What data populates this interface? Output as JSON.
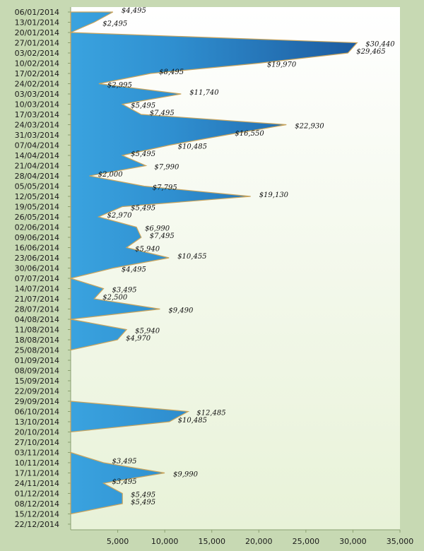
{
  "chart_data": {
    "type": "area",
    "orientation": "horizontal",
    "title": "",
    "xlabel": "",
    "ylabel": "",
    "xlim": [
      0,
      35000
    ],
    "x_ticks": [
      5000,
      10000,
      15000,
      20000,
      25000,
      30000,
      35000
    ],
    "x_tick_labels": [
      "5,000",
      "10,000",
      "15,000",
      "20,000",
      "25,000",
      "30,000",
      "35,000"
    ],
    "grid": false,
    "legend": "none",
    "colors": {
      "area_light": "#3aa3df",
      "area_dark": "#1c5a9e",
      "outline": "#c9a45c",
      "plot_bg_top": "#ffffff",
      "plot_bg_bottom": "#e8f2d8",
      "page_bg": "#c7d9b3",
      "axis": "#8aa070"
    },
    "categories": [
      "06/01/2014",
      "13/01/2014",
      "20/01/2014",
      "27/01/2014",
      "03/02/2014",
      "10/02/2014",
      "17/02/2014",
      "24/02/2014",
      "03/03/2014",
      "10/03/2014",
      "17/03/2014",
      "24/03/2014",
      "31/03/2014",
      "07/04/2014",
      "14/04/2014",
      "21/04/2014",
      "28/04/2014",
      "05/05/2014",
      "12/05/2014",
      "19/05/2014",
      "26/05/2014",
      "02/06/2014",
      "09/06/2014",
      "16/06/2014",
      "23/06/2014",
      "30/06/2014",
      "07/07/2014",
      "14/07/2014",
      "21/07/2014",
      "28/07/2014",
      "04/08/2014",
      "11/08/2014",
      "18/08/2014",
      "25/08/2014",
      "01/09/2014",
      "08/09/2014",
      "15/09/2014",
      "22/09/2014",
      "29/09/2014",
      "06/10/2014",
      "13/10/2014",
      "20/10/2014",
      "27/10/2014",
      "03/11/2014",
      "10/11/2014",
      "17/11/2014",
      "24/11/2014",
      "01/12/2014",
      "08/12/2014",
      "15/12/2014",
      "22/12/2014"
    ],
    "values": [
      4495,
      2495,
      null,
      30440,
      29465,
      19970,
      8495,
      2995,
      11740,
      5495,
      7495,
      22930,
      16550,
      10485,
      5495,
      7990,
      2000,
      7795,
      19130,
      5495,
      2970,
      6990,
      7495,
      5940,
      10455,
      4495,
      null,
      3495,
      2500,
      9490,
      null,
      5940,
      4970,
      null,
      null,
      null,
      null,
      null,
      null,
      12485,
      10485,
      null,
      null,
      null,
      3495,
      9990,
      3495,
      5495,
      5495,
      null,
      null
    ],
    "data_labels": [
      "$4,495",
      "$2,495",
      "",
      "$30,440",
      "$29,465",
      "$19,970",
      "$8,495",
      "$2,995",
      "$11,740",
      "$5,495",
      "$7,495",
      "$22,930",
      "$16,550",
      "$10,485",
      "$5,495",
      "$7,990",
      "$2,000",
      "$7,795",
      "$19,130",
      "$5,495",
      "$2,970",
      "$6,990",
      "$7,495",
      "$5,940",
      "$10,455",
      "$4,495",
      "",
      "$3,495",
      "$2,500",
      "$9,490",
      "",
      "$5,940",
      "$4,970",
      "",
      "",
      "",
      "",
      "",
      "",
      "$12,485",
      "$10,485",
      "",
      "",
      "",
      "$3,495",
      "$9,990",
      "$3,495",
      "$5,495",
      "$5,495",
      "",
      ""
    ]
  }
}
